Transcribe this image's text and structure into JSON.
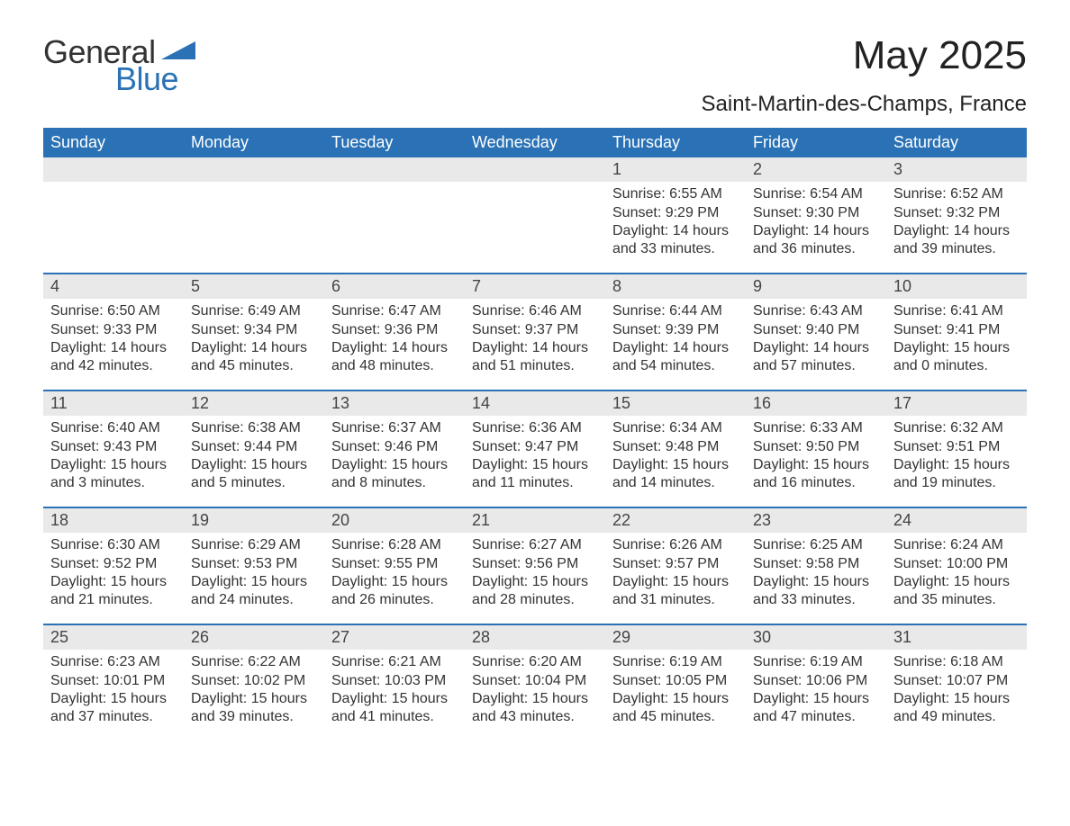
{
  "brand": {
    "word1": "General",
    "word2": "Blue",
    "text_color": "#333333",
    "accent_color": "#2a72b5"
  },
  "title": "May 2025",
  "location": "Saint-Martin-des-Champs, France",
  "colors": {
    "header_bg": "#2a72b5",
    "header_text": "#ffffff",
    "row_divider": "#2a72b5",
    "daynum_bg": "#e9e9e9",
    "body_text": "#333333",
    "page_bg": "#ffffff"
  },
  "fonts": {
    "title_pt": 44,
    "location_pt": 24,
    "dow_pt": 18,
    "daynum_pt": 18,
    "body_pt": 16,
    "logo_pt": 36
  },
  "days_of_week": [
    "Sunday",
    "Monday",
    "Tuesday",
    "Wednesday",
    "Thursday",
    "Friday",
    "Saturday"
  ],
  "weeks": [
    [
      {
        "day": "",
        "sunrise": "",
        "sunset": "",
        "daylight": ""
      },
      {
        "day": "",
        "sunrise": "",
        "sunset": "",
        "daylight": ""
      },
      {
        "day": "",
        "sunrise": "",
        "sunset": "",
        "daylight": ""
      },
      {
        "day": "",
        "sunrise": "",
        "sunset": "",
        "daylight": ""
      },
      {
        "day": "1",
        "sunrise": "Sunrise: 6:55 AM",
        "sunset": "Sunset: 9:29 PM",
        "daylight": "Daylight: 14 hours and 33 minutes."
      },
      {
        "day": "2",
        "sunrise": "Sunrise: 6:54 AM",
        "sunset": "Sunset: 9:30 PM",
        "daylight": "Daylight: 14 hours and 36 minutes."
      },
      {
        "day": "3",
        "sunrise": "Sunrise: 6:52 AM",
        "sunset": "Sunset: 9:32 PM",
        "daylight": "Daylight: 14 hours and 39 minutes."
      }
    ],
    [
      {
        "day": "4",
        "sunrise": "Sunrise: 6:50 AM",
        "sunset": "Sunset: 9:33 PM",
        "daylight": "Daylight: 14 hours and 42 minutes."
      },
      {
        "day": "5",
        "sunrise": "Sunrise: 6:49 AM",
        "sunset": "Sunset: 9:34 PM",
        "daylight": "Daylight: 14 hours and 45 minutes."
      },
      {
        "day": "6",
        "sunrise": "Sunrise: 6:47 AM",
        "sunset": "Sunset: 9:36 PM",
        "daylight": "Daylight: 14 hours and 48 minutes."
      },
      {
        "day": "7",
        "sunrise": "Sunrise: 6:46 AM",
        "sunset": "Sunset: 9:37 PM",
        "daylight": "Daylight: 14 hours and 51 minutes."
      },
      {
        "day": "8",
        "sunrise": "Sunrise: 6:44 AM",
        "sunset": "Sunset: 9:39 PM",
        "daylight": "Daylight: 14 hours and 54 minutes."
      },
      {
        "day": "9",
        "sunrise": "Sunrise: 6:43 AM",
        "sunset": "Sunset: 9:40 PM",
        "daylight": "Daylight: 14 hours and 57 minutes."
      },
      {
        "day": "10",
        "sunrise": "Sunrise: 6:41 AM",
        "sunset": "Sunset: 9:41 PM",
        "daylight": "Daylight: 15 hours and 0 minutes."
      }
    ],
    [
      {
        "day": "11",
        "sunrise": "Sunrise: 6:40 AM",
        "sunset": "Sunset: 9:43 PM",
        "daylight": "Daylight: 15 hours and 3 minutes."
      },
      {
        "day": "12",
        "sunrise": "Sunrise: 6:38 AM",
        "sunset": "Sunset: 9:44 PM",
        "daylight": "Daylight: 15 hours and 5 minutes."
      },
      {
        "day": "13",
        "sunrise": "Sunrise: 6:37 AM",
        "sunset": "Sunset: 9:46 PM",
        "daylight": "Daylight: 15 hours and 8 minutes."
      },
      {
        "day": "14",
        "sunrise": "Sunrise: 6:36 AM",
        "sunset": "Sunset: 9:47 PM",
        "daylight": "Daylight: 15 hours and 11 minutes."
      },
      {
        "day": "15",
        "sunrise": "Sunrise: 6:34 AM",
        "sunset": "Sunset: 9:48 PM",
        "daylight": "Daylight: 15 hours and 14 minutes."
      },
      {
        "day": "16",
        "sunrise": "Sunrise: 6:33 AM",
        "sunset": "Sunset: 9:50 PM",
        "daylight": "Daylight: 15 hours and 16 minutes."
      },
      {
        "day": "17",
        "sunrise": "Sunrise: 6:32 AM",
        "sunset": "Sunset: 9:51 PM",
        "daylight": "Daylight: 15 hours and 19 minutes."
      }
    ],
    [
      {
        "day": "18",
        "sunrise": "Sunrise: 6:30 AM",
        "sunset": "Sunset: 9:52 PM",
        "daylight": "Daylight: 15 hours and 21 minutes."
      },
      {
        "day": "19",
        "sunrise": "Sunrise: 6:29 AM",
        "sunset": "Sunset: 9:53 PM",
        "daylight": "Daylight: 15 hours and 24 minutes."
      },
      {
        "day": "20",
        "sunrise": "Sunrise: 6:28 AM",
        "sunset": "Sunset: 9:55 PM",
        "daylight": "Daylight: 15 hours and 26 minutes."
      },
      {
        "day": "21",
        "sunrise": "Sunrise: 6:27 AM",
        "sunset": "Sunset: 9:56 PM",
        "daylight": "Daylight: 15 hours and 28 minutes."
      },
      {
        "day": "22",
        "sunrise": "Sunrise: 6:26 AM",
        "sunset": "Sunset: 9:57 PM",
        "daylight": "Daylight: 15 hours and 31 minutes."
      },
      {
        "day": "23",
        "sunrise": "Sunrise: 6:25 AM",
        "sunset": "Sunset: 9:58 PM",
        "daylight": "Daylight: 15 hours and 33 minutes."
      },
      {
        "day": "24",
        "sunrise": "Sunrise: 6:24 AM",
        "sunset": "Sunset: 10:00 PM",
        "daylight": "Daylight: 15 hours and 35 minutes."
      }
    ],
    [
      {
        "day": "25",
        "sunrise": "Sunrise: 6:23 AM",
        "sunset": "Sunset: 10:01 PM",
        "daylight": "Daylight: 15 hours and 37 minutes."
      },
      {
        "day": "26",
        "sunrise": "Sunrise: 6:22 AM",
        "sunset": "Sunset: 10:02 PM",
        "daylight": "Daylight: 15 hours and 39 minutes."
      },
      {
        "day": "27",
        "sunrise": "Sunrise: 6:21 AM",
        "sunset": "Sunset: 10:03 PM",
        "daylight": "Daylight: 15 hours and 41 minutes."
      },
      {
        "day": "28",
        "sunrise": "Sunrise: 6:20 AM",
        "sunset": "Sunset: 10:04 PM",
        "daylight": "Daylight: 15 hours and 43 minutes."
      },
      {
        "day": "29",
        "sunrise": "Sunrise: 6:19 AM",
        "sunset": "Sunset: 10:05 PM",
        "daylight": "Daylight: 15 hours and 45 minutes."
      },
      {
        "day": "30",
        "sunrise": "Sunrise: 6:19 AM",
        "sunset": "Sunset: 10:06 PM",
        "daylight": "Daylight: 15 hours and 47 minutes."
      },
      {
        "day": "31",
        "sunrise": "Sunrise: 6:18 AM",
        "sunset": "Sunset: 10:07 PM",
        "daylight": "Daylight: 15 hours and 49 minutes."
      }
    ]
  ]
}
